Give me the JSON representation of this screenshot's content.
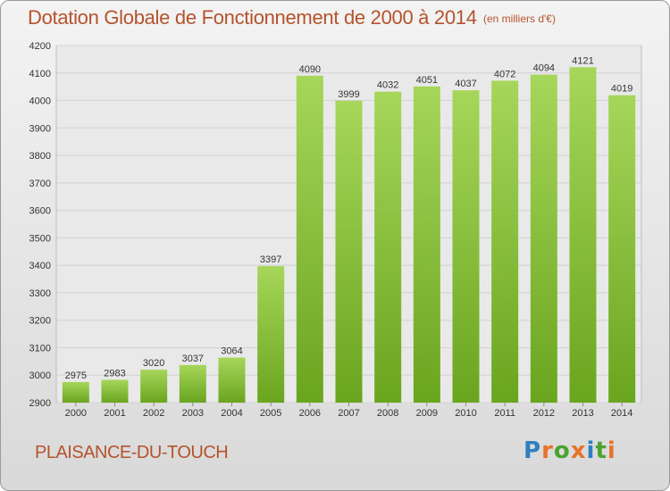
{
  "chart_data": {
    "type": "bar",
    "title": "Dotation Globale de Fonctionnement de 2000 à 2014",
    "subtitle": "(en milliers d'€)",
    "categories": [
      "2000",
      "2001",
      "2002",
      "2003",
      "2004",
      "2005",
      "2006",
      "2007",
      "2008",
      "2009",
      "2010",
      "2011",
      "2012",
      "2013",
      "2014"
    ],
    "values": [
      2975,
      2983,
      3020,
      3037,
      3064,
      3397,
      4090,
      3999,
      4032,
      4051,
      4037,
      4072,
      4094,
      4121,
      4019
    ],
    "data_labels": [
      "2975",
      "2983",
      "3020",
      "3037",
      "3064",
      "3397",
      "4090",
      "3999",
      "4032",
      "4051",
      "4037",
      "4072",
      "4094",
      "4121",
      "4019"
    ],
    "ylim": [
      2900,
      4200
    ],
    "yticks": [
      "2900",
      "3000",
      "3100",
      "3200",
      "3300",
      "3400",
      "3500",
      "3600",
      "3700",
      "3800",
      "3900",
      "4000",
      "4100",
      "4200"
    ],
    "grid": true,
    "xlabel": "",
    "ylabel": ""
  },
  "footer": {
    "commune": "PLAISANCE-DU-TOUCH",
    "logo_letters": [
      "P",
      "r",
      "o",
      "x",
      "i",
      "t",
      "i"
    ]
  },
  "colors": {
    "bar_light": "#a6d65a",
    "bar_dark": "#6aa51f",
    "title": "#b5532c",
    "logo": [
      "#2f7fc1",
      "#e8722a",
      "#4aa32f",
      "#e8722a",
      "#2f7fc1",
      "#4aa32f",
      "#e8722a"
    ]
  }
}
